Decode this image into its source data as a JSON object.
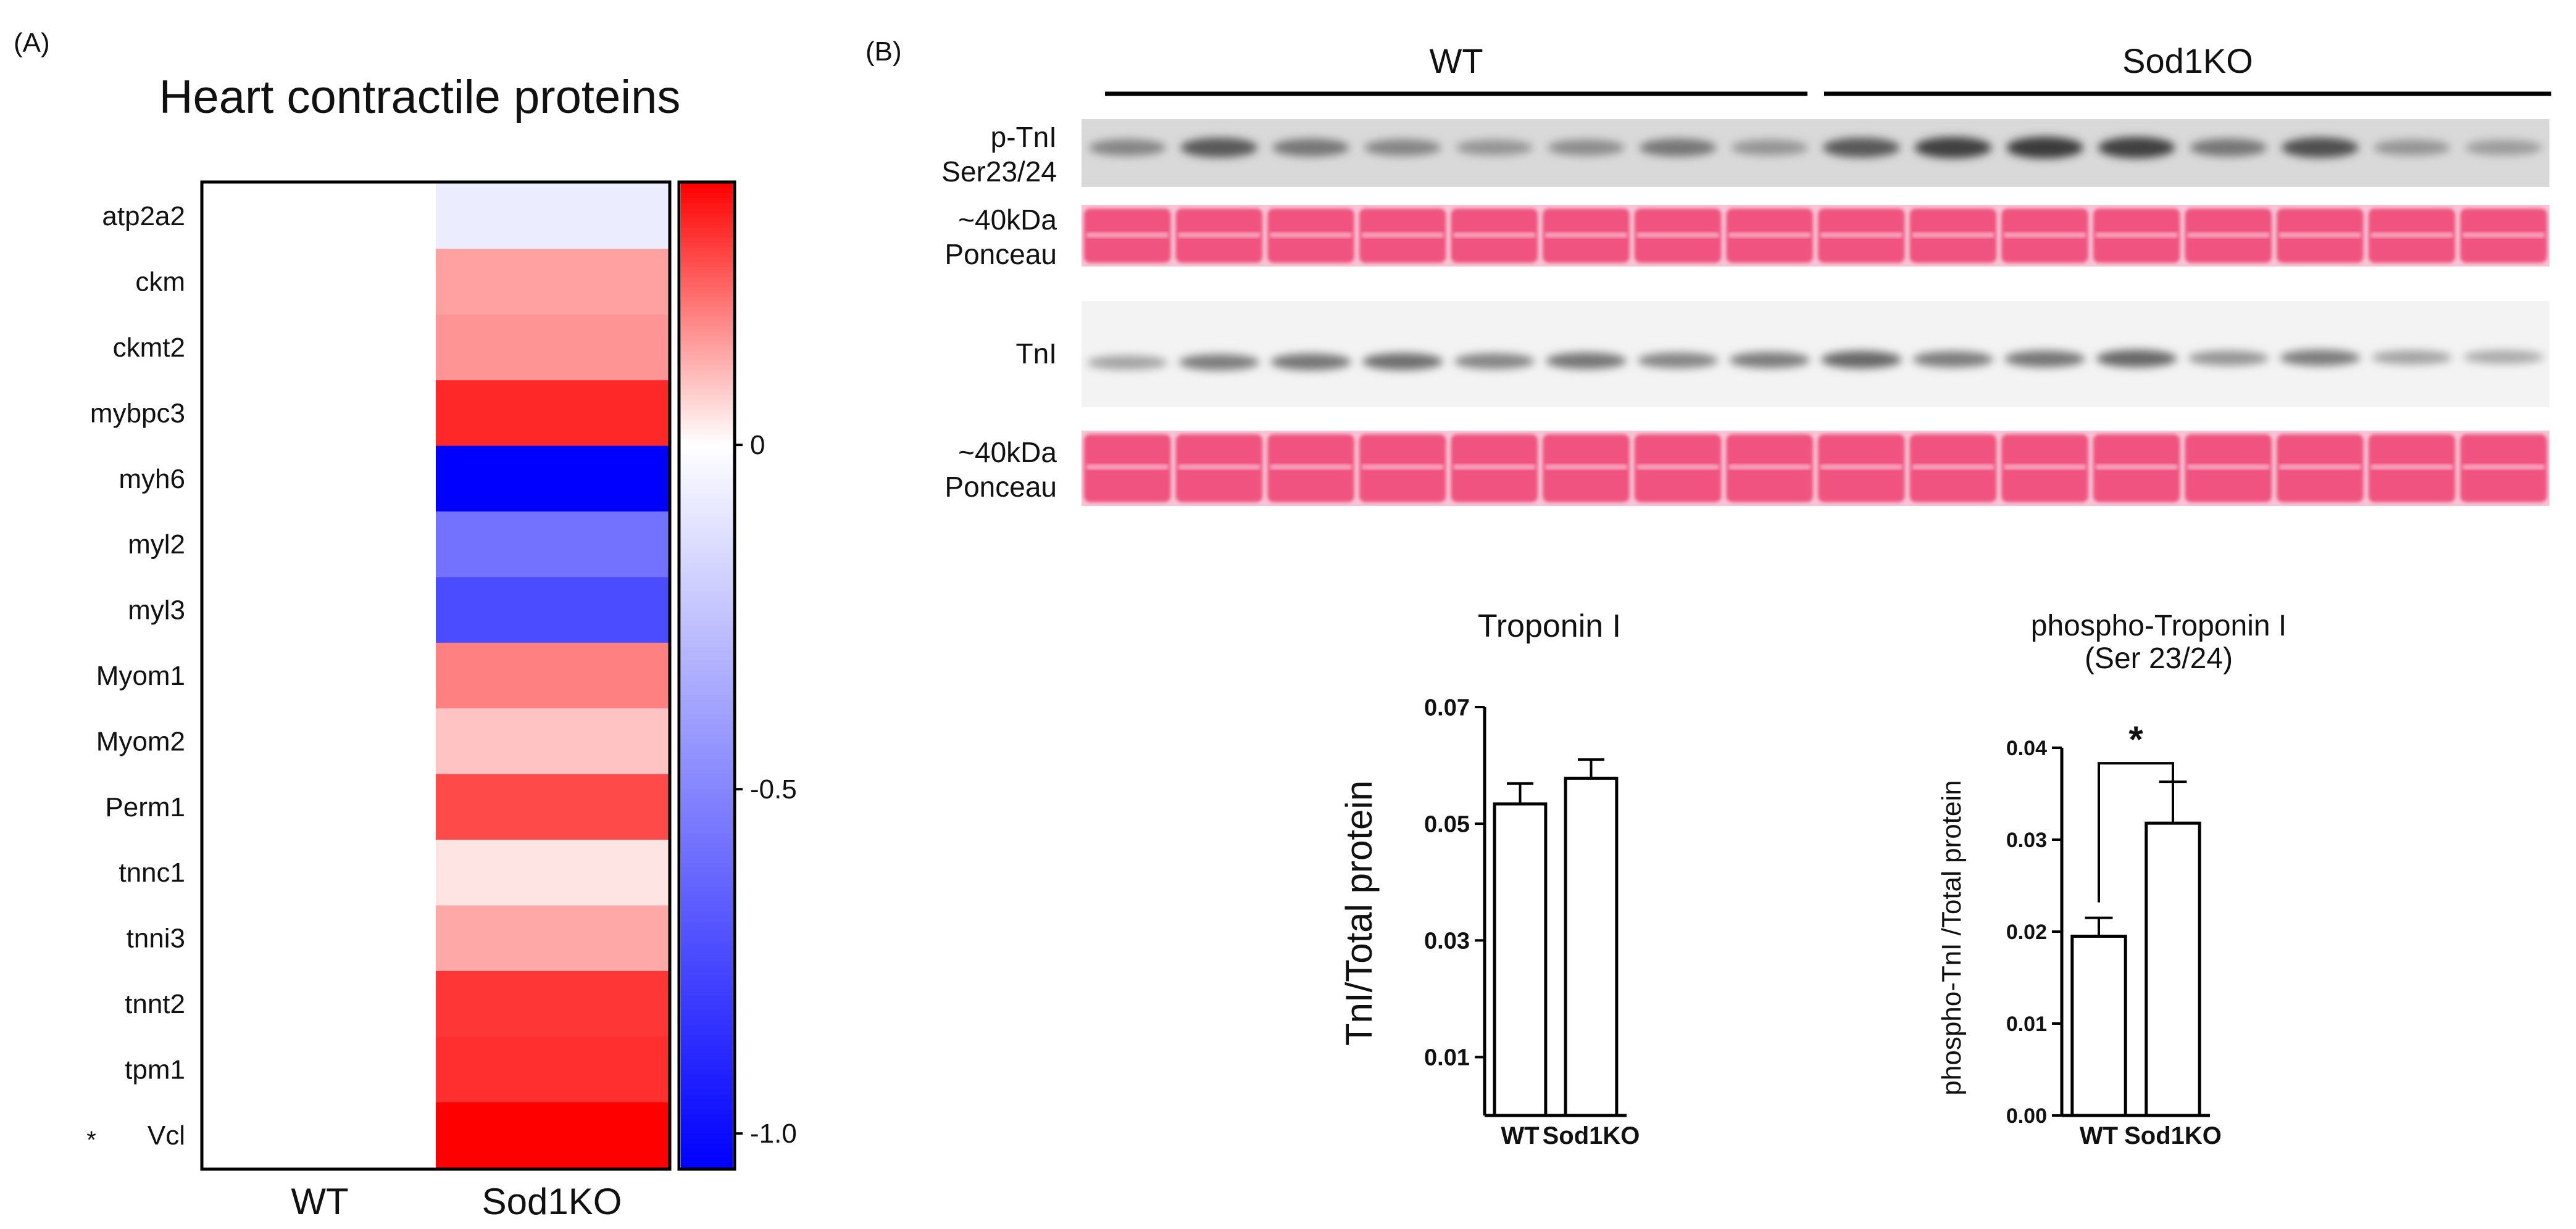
{
  "chart_data": [
    {
      "type": "heatmap",
      "panel_label": "(A)",
      "title": "Heart contractile proteins",
      "rows": [
        "atp2a2",
        "ckm",
        "ckmt2",
        "mybpc3",
        "myh6",
        "myl2",
        "myl3",
        "Myom1",
        "Myom2",
        "Perm1",
        "tnnc1",
        "tnni3",
        "tnnt2",
        "tpm1",
        "Vcl"
      ],
      "row_markers": [
        "",
        "",
        "",
        "",
        "",
        "",
        "",
        "",
        "",
        "",
        "",
        "",
        "",
        "",
        "*"
      ],
      "columns": [
        "WT",
        "Sod1KO"
      ],
      "values": [
        [
          0,
          -0.08
        ],
        [
          0,
          0.14
        ],
        [
          0,
          0.16
        ],
        [
          0,
          0.32
        ],
        [
          0,
          -1.05
        ],
        [
          0,
          -0.58
        ],
        [
          0,
          -0.74
        ],
        [
          0,
          0.19
        ],
        [
          0,
          0.09
        ],
        [
          0,
          0.27
        ],
        [
          0,
          0.04
        ],
        [
          0,
          0.13
        ],
        [
          0,
          0.3
        ],
        [
          0,
          0.31
        ],
        [
          0,
          0.38
        ]
      ],
      "colorbar": {
        "min": -1.05,
        "max": 0.38,
        "ticks": [
          0,
          -0.5,
          -1.0
        ],
        "tick_labels": [
          "0",
          "-0.5",
          "-1.0"
        ],
        "low_color": "#0000ff",
        "mid_color": "#ffffff",
        "high_color": "#ff0000"
      }
    },
    {
      "type": "bar",
      "title": "Troponin I",
      "categories": [
        "WT",
        "Sod1KO"
      ],
      "values": [
        0.0534,
        0.0578
      ],
      "errors": [
        0.0035,
        0.0032
      ],
      "ylabel": "TnI/Total protein",
      "ylim": [
        0,
        0.07
      ],
      "yticks": [
        0.01,
        0.03,
        0.05,
        0.07
      ],
      "ytick_labels": [
        "0.01",
        "0.03",
        "0.05",
        "0.07"
      ]
    },
    {
      "type": "bar",
      "title": "phospho-Troponin I",
      "subtitle": "(Ser 23/24)",
      "categories": [
        "WT",
        "Sod1KO"
      ],
      "values": [
        0.0195,
        0.0318
      ],
      "errors": [
        0.002,
        0.0045
      ],
      "ylabel": "phospho-TnI /Total protein",
      "ylim": [
        0,
        0.04
      ],
      "yticks": [
        0.0,
        0.01,
        0.02,
        0.03,
        0.04
      ],
      "ytick_labels": [
        "0.00",
        "0.01",
        "0.02",
        "0.03",
        "0.04"
      ],
      "significance": "*"
    }
  ],
  "blot": {
    "panel_label": "(B)",
    "groups": [
      "WT",
      "Sod1KO"
    ],
    "lanes_per_group": 8,
    "strip_labels": [
      [
        "p-TnI",
        "Ser23/24"
      ],
      [
        "~40kDa",
        "Ponceau"
      ],
      [
        "TnI"
      ],
      [
        "~40kDa",
        "Ponceau"
      ]
    ],
    "p_tni_intensity": [
      0.45,
      0.75,
      0.55,
      0.45,
      0.35,
      0.4,
      0.55,
      0.35,
      0.75,
      0.9,
      0.95,
      0.9,
      0.55,
      0.8,
      0.35,
      0.3
    ],
    "tni_intensity": [
      0.35,
      0.6,
      0.65,
      0.7,
      0.55,
      0.65,
      0.55,
      0.6,
      0.75,
      0.6,
      0.65,
      0.75,
      0.45,
      0.6,
      0.35,
      0.3
    ]
  }
}
